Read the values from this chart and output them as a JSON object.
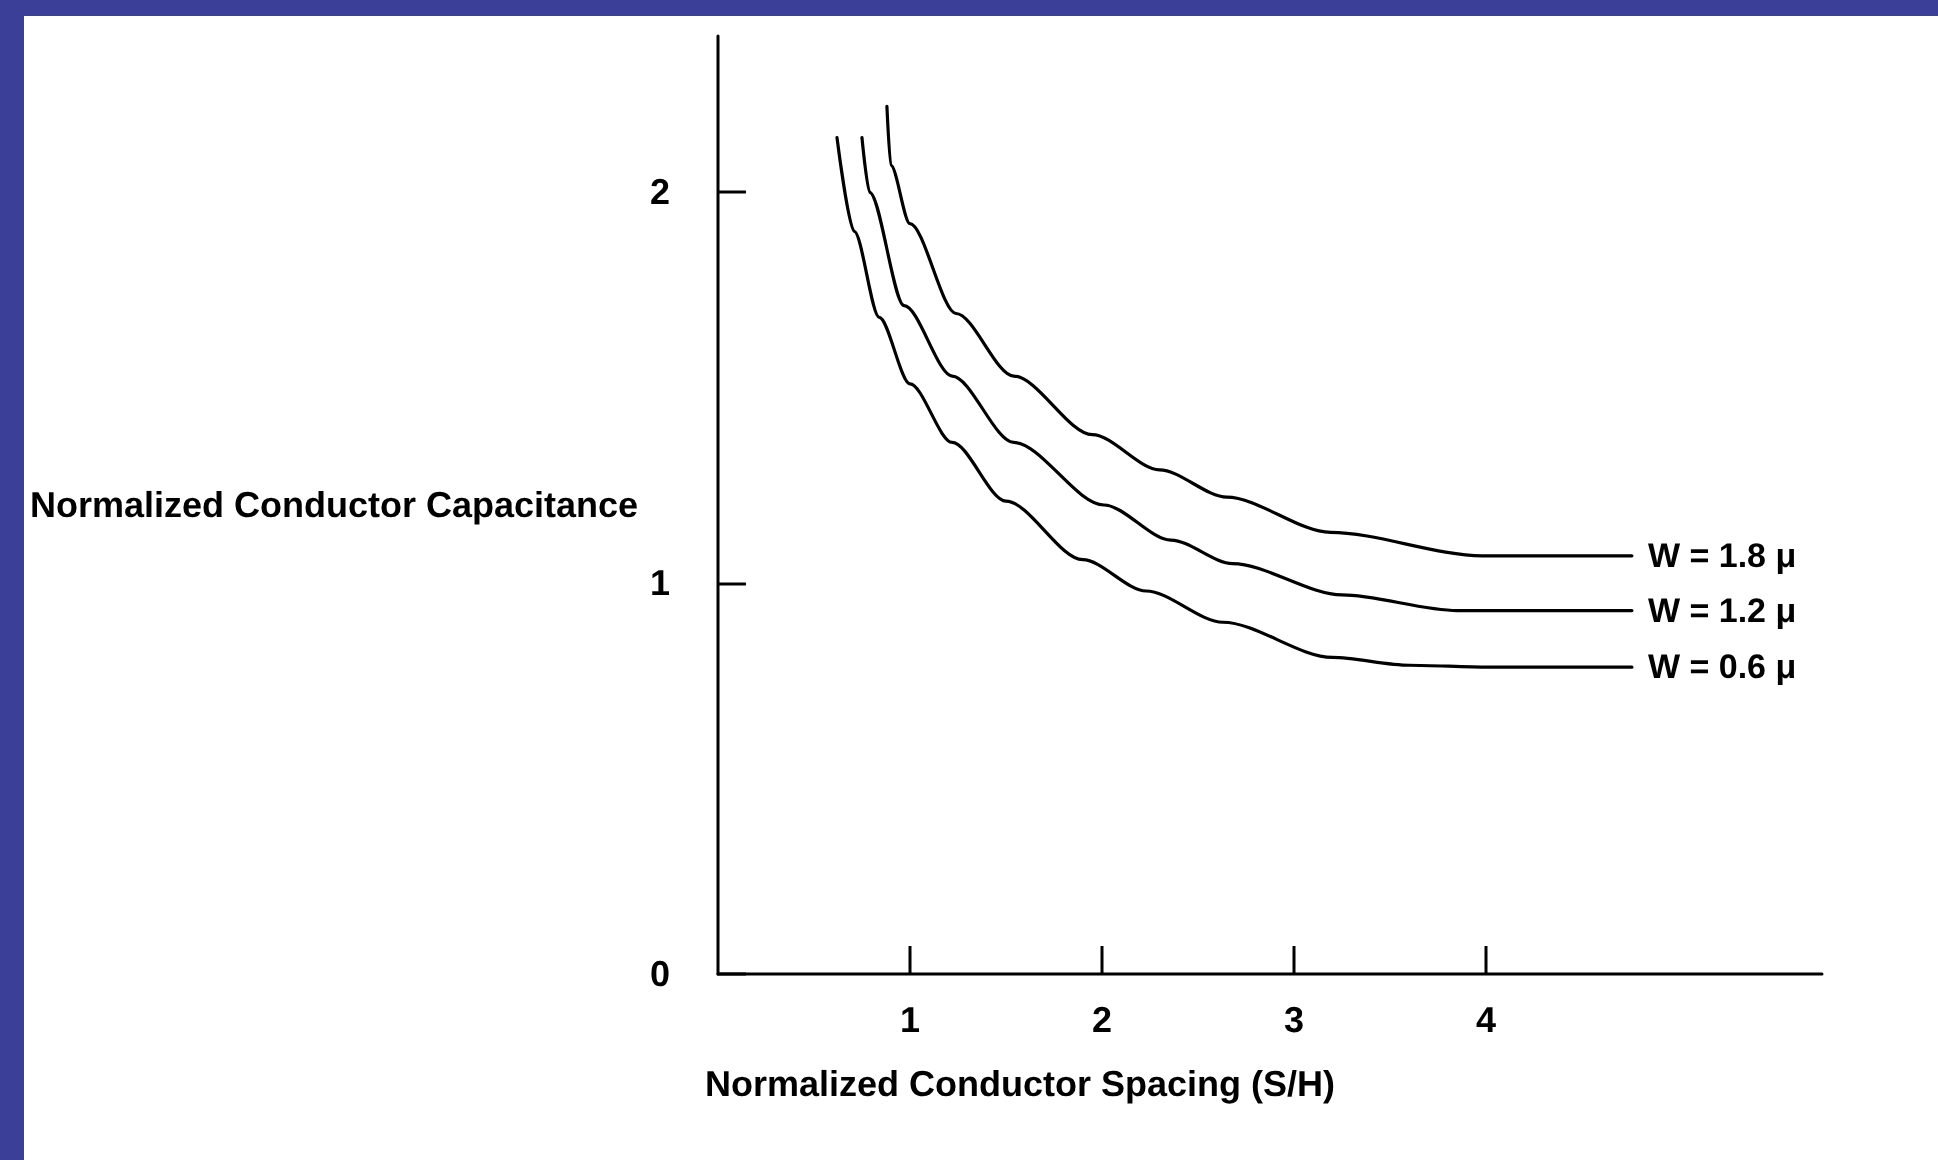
{
  "chart_data": {
    "type": "line",
    "xlabel": "Normalized Conductor Spacing (S/H)",
    "ylabel": "Normalized Conductor Capacitance",
    "xlim": [
      0,
      5.75
    ],
    "ylim": [
      0,
      2.4
    ],
    "xticks": [
      1,
      2,
      3,
      4
    ],
    "yticks": [
      0,
      1,
      2
    ],
    "grid": false,
    "legend": false,
    "marker": "none",
    "line_style": "solid",
    "series": [
      {
        "name": "W = 1.8 μ",
        "color": "#000000",
        "x": [
          0.88,
          0.9,
          1.0,
          1.24,
          1.54,
          1.95,
          2.3,
          2.65,
          3.19,
          3.98,
          4.76
        ],
        "values": [
          2.22,
          2.07,
          1.92,
          1.69,
          1.53,
          1.38,
          1.29,
          1.22,
          1.13,
          1.07,
          1.07
        ]
      },
      {
        "name": "W = 1.2 μ",
        "color": "#000000",
        "x": [
          0.75,
          0.79,
          0.97,
          1.22,
          1.54,
          2.01,
          2.36,
          2.68,
          3.25,
          3.85,
          4.76
        ],
        "values": [
          2.14,
          2.0,
          1.71,
          1.53,
          1.36,
          1.2,
          1.11,
          1.05,
          0.97,
          0.93,
          0.93
        ]
      },
      {
        "name": "W = 0.6 μ",
        "color": "#000000",
        "x": [
          0.62,
          0.71,
          0.84,
          1.0,
          1.22,
          1.5,
          1.9,
          2.23,
          2.63,
          3.2,
          3.6,
          4.01,
          4.76
        ],
        "values": [
          2.14,
          1.9,
          1.68,
          1.51,
          1.36,
          1.21,
          1.06,
          0.98,
          0.9,
          0.81,
          0.79,
          0.785,
          0.785
        ]
      }
    ]
  }
}
